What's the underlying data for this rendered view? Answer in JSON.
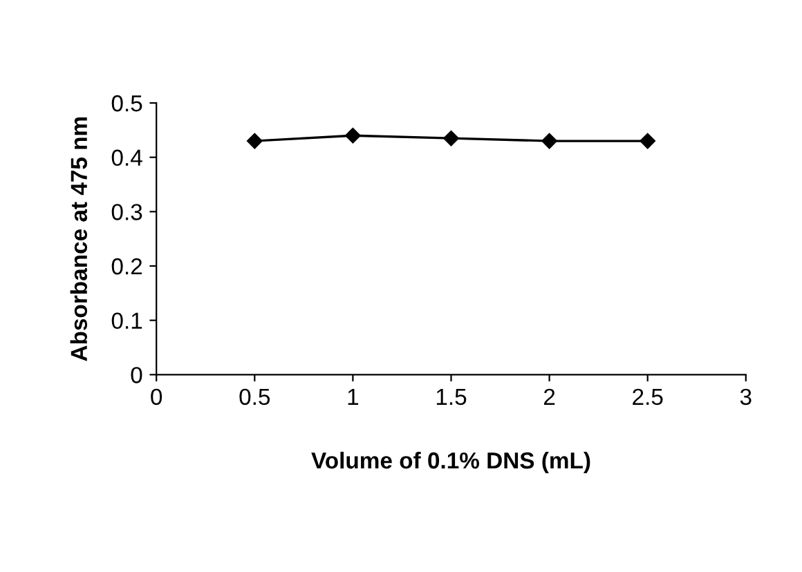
{
  "chart_data": {
    "type": "line",
    "xlabel": "Volume of 0.1% DNS (mL)",
    "ylabel": "Absorbance at 475 nm",
    "x": [
      0.5,
      1,
      1.5,
      2,
      2.5
    ],
    "series": [
      {
        "color": "#000000",
        "values": [
          0.43,
          0.44,
          0.435,
          0.43,
          0.43
        ]
      }
    ],
    "xlim": [
      0,
      3
    ],
    "xticks": [
      0,
      0.5,
      1,
      1.5,
      2,
      2.5,
      3
    ],
    "ylim": [
      0,
      0.5
    ],
    "yticks": [
      0,
      0.1,
      0.2,
      0.3,
      0.4,
      0.5
    ],
    "marker": "diamond",
    "line_style": "solid",
    "grid": false,
    "legend": false
  }
}
